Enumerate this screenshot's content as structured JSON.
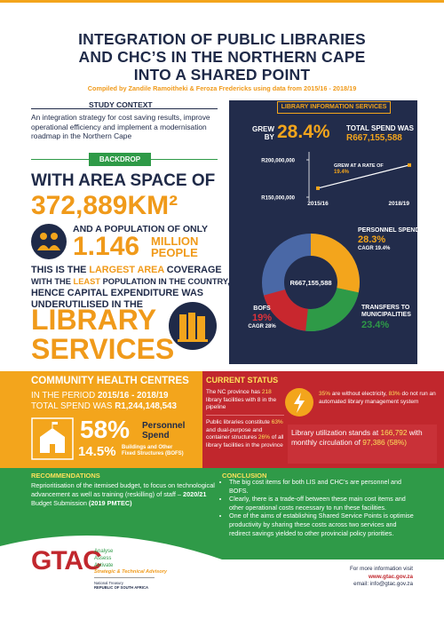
{
  "header": {
    "title_lines": [
      "INTEGRATION OF PUBLIC LIBRARIES",
      "AND CHC’S IN THE NORTHERN CAPE",
      "INTO A SHARED POINT"
    ],
    "subtitle": "Compiled by Zandile Ramoitheki & Feroza Fredericks using data from 2015/16 - 2018/19"
  },
  "study_context": {
    "heading": "STUDY CONTEXT",
    "text": "An integration strategy for cost saving results, improve operational efficiency and implement a modernisation roadmap in the Northern Cape"
  },
  "backdrop": {
    "tab": "BACKDROP",
    "area_intro": "WITH AREA SPACE OF",
    "area": "372,889KM²",
    "population_intro": "AND A POPULATION OF ONLY",
    "population": "1.146",
    "population_unit": [
      "MILLION",
      "PEOPLE"
    ],
    "statement": [
      [
        {
          "text": "THIS IS THE "
        },
        {
          "text": "LARGEST AREA",
          "em": true
        },
        {
          "text": " COVERAGE"
        }
      ],
      [
        {
          "text": "WITH THE "
        },
        {
          "text": "LEAST",
          "em": true
        },
        {
          "text": " POPULATION IN THE COUNTRY,"
        }
      ],
      [
        {
          "text": "HENCE CAPITAL EXPENDITURE WAS"
        }
      ],
      [
        {
          "text": "UNDERUTILISED IN THE"
        }
      ]
    ],
    "emphasis": [
      "LIBRARY",
      "SERVICES"
    ]
  },
  "library_info": {
    "heading": "LIBRARY INFORMATION SERVICES",
    "grew_by_label": [
      "GREW",
      "BY"
    ],
    "grew_by": "28.4%",
    "total_spend_label": "TOTAL SPEND WAS",
    "total_spend": "R667,155,588",
    "spend_chart": {
      "type": "line",
      "x": [
        "2015/16",
        "2018/19"
      ],
      "values": [
        162000000,
        193000000
      ],
      "ylim": [
        150000000,
        200000000
      ],
      "yticks": [
        {
          "value": 150000000,
          "label": "R150,000,000"
        },
        {
          "value": 200000000,
          "label": "R200,000,000"
        }
      ],
      "annotation": [
        "GREW AT A RATE OF",
        "19.4%"
      ],
      "color": "#ffffff"
    },
    "donut": {
      "center_label": "R667,155,588",
      "rest_color": "#4a68a6",
      "segments": [
        {
          "name": "PERSONNEL SPEND",
          "value": 28.3,
          "value_label": "28.3%",
          "note": "CAGR 19.4%",
          "color": "#f3a51c"
        },
        {
          "name": "TRANSFERS TO MUNICIPALITIES",
          "value": 23.4,
          "value_label": "23.4%",
          "color": "#2e9a47"
        },
        {
          "name": "BOFS",
          "value": 19,
          "value_label": "19%",
          "note": "CAGR 28%",
          "color": "#c8272e"
        }
      ]
    }
  },
  "chc": {
    "heading": "COMMUNITY HEALTH CENTRES",
    "period": [
      {
        "text": "IN THE PERIOD "
      },
      {
        "text": "2015/16 - 2018/19",
        "em": true
      }
    ],
    "total": [
      {
        "text": "TOTAL SPEND WAS "
      },
      {
        "text": "R1,244,148,543",
        "em": true
      }
    ],
    "personnel": "58%",
    "personnel_label": [
      "Personnel",
      "Spend"
    ],
    "bofs": "14.5%",
    "bofs_label": [
      "Buildings and Other",
      "Fixed Structures (BOFS)"
    ]
  },
  "current_status": {
    "heading": "CURRENT STATUS",
    "facilities": [
      {
        "text": "The NC province has "
      },
      {
        "text": "218",
        "em": true
      },
      {
        "text": " library facilities with 8 in the pipeline"
      }
    ],
    "structures": [
      {
        "text": "Public libraries constitute "
      },
      {
        "text": "63%",
        "em": true
      },
      {
        "text": " and dual-purpose and container structures "
      },
      {
        "text": "26%",
        "em": true
      },
      {
        "text": " of all library facilities in the province"
      }
    ],
    "electricity": [
      {
        "text": "35%",
        "em": true
      },
      {
        "text": " are without electricity, "
      },
      {
        "text": "83%",
        "em": true
      },
      {
        "text": " do not run an automated library management system"
      }
    ],
    "utilization": [
      {
        "text": "Library utilization stands at "
      },
      {
        "text": "166,792",
        "em": true
      },
      {
        "text": " with monthly circulation of "
      },
      {
        "text": "97,386 (58%)",
        "em": true
      }
    ]
  },
  "recommendations": {
    "heading": "RECOMMENDATIONS",
    "text": [
      {
        "text": "Reprioritisation of the itemised budget, to focus on technological advancement as well as training (reskilling) of staff – "
      },
      {
        "text": "2020/21",
        "em": true
      },
      {
        "text": " Budget Submission "
      },
      {
        "text": "(2019 PMTEC)",
        "em": true
      }
    ]
  },
  "conclusion": {
    "heading": "CONCLUSION",
    "items": [
      "The big cost items for both LIS and CHC’s are personnel and BOFS.",
      "Clearly, there is a trade-off between these main cost items and other operational costs necessary to run these facilities.",
      "One of the aims of establishing Shared Service Points is optimise productivity by sharing these costs across two services and redirect savings yielded to other provincial policy priorities."
    ]
  },
  "footer": {
    "logo": "GTAC",
    "taglines": [
      "Analyse",
      "Assess",
      "Activate"
    ],
    "org": "Strategic & Technical Advisory",
    "treasury": [
      "National Treasury",
      "REPUBLIC OF SOUTH AFRICA"
    ],
    "more_info": "For more information visit",
    "website": "www.gtac.gov.za",
    "email": "email: info@gtac.gov.za"
  }
}
